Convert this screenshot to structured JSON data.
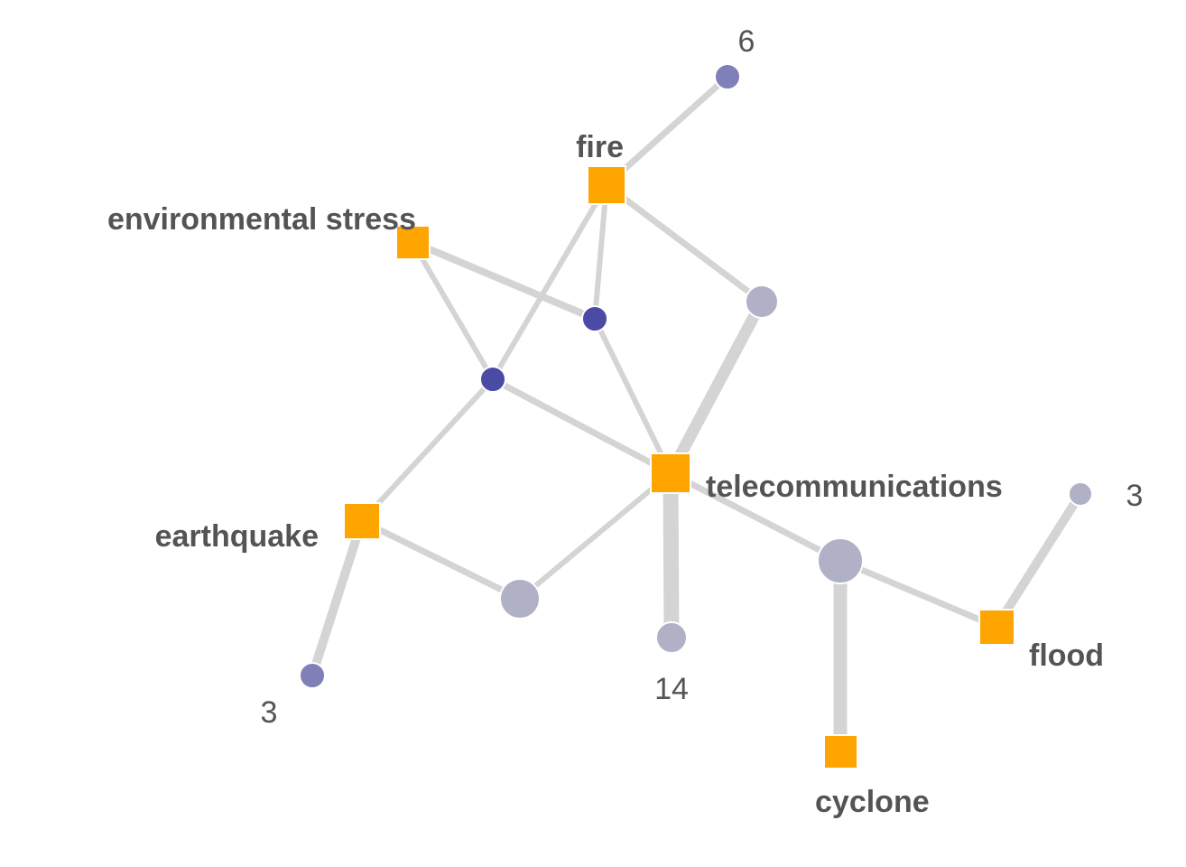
{
  "colors": {
    "term": "#ffa500",
    "edge": "#d4d4d4",
    "label": "#545454",
    "entity_dark": "#4b4ba6",
    "entity_mid": "#8080b8",
    "entity_light": "#b0b0c6"
  },
  "graph": {
    "terms": [
      {
        "id": "fire",
        "label": "fire"
      },
      {
        "id": "environmental-stress",
        "label": "environmental stress"
      },
      {
        "id": "telecommunications",
        "label": "telecommunications"
      },
      {
        "id": "earthquake",
        "label": "earthquake"
      },
      {
        "id": "flood",
        "label": "flood"
      },
      {
        "id": "cyclone",
        "label": "cyclone"
      }
    ],
    "entities": [
      {
        "id": "e-top",
        "count": "6"
      },
      {
        "id": "e-mid-right",
        "count": ""
      },
      {
        "id": "e-dark-a",
        "count": ""
      },
      {
        "id": "e-dark-b",
        "count": ""
      },
      {
        "id": "e-bottom-left",
        "count": ""
      },
      {
        "id": "e-bottom-mid",
        "count": "14"
      },
      {
        "id": "e-right-big",
        "count": ""
      },
      {
        "id": "e-small-right",
        "count": "3"
      },
      {
        "id": "e-lower-left",
        "count": "3"
      }
    ]
  }
}
